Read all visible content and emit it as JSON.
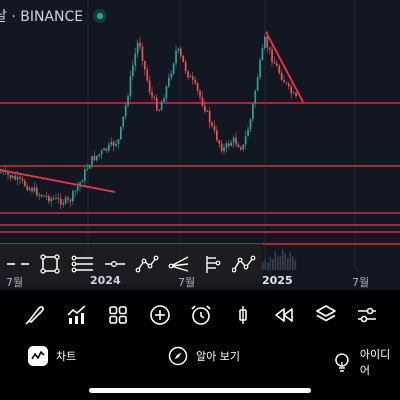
{
  "header": {
    "title": "날 · BINANCE",
    "status_color": "#22ab94"
  },
  "x_axis": {
    "labels": [
      "7월",
      "2024",
      "7월",
      "2025",
      "7월"
    ]
  },
  "colors": {
    "chart_bg": "#131722",
    "candle_up": "#26a69a",
    "candle_down": "#ef5350",
    "horizontal_line": "#f23645",
    "trendline": "#f23645"
  },
  "drawing_toolbar": {
    "tools": [
      "cursor-icon",
      "rectangle-icon",
      "parallel-channel-icon",
      "horizontal-ray-icon",
      "path-icon",
      "pitchfork-icon",
      "fib-extension-icon",
      "pattern-icon"
    ]
  },
  "main_toolbar": {
    "tools": [
      "brush-icon",
      "indicators-icon",
      "layouts-icon",
      "add-icon",
      "alert-icon",
      "candle-type-icon",
      "replay-icon",
      "layers-icon",
      "settings-icon"
    ]
  },
  "tabs": [
    {
      "label": "차트",
      "icon": "chart-icon"
    },
    {
      "label": "알아 보기",
      "icon": "compass-icon"
    },
    {
      "label": "아이디어",
      "icon": "lightbulb-icon"
    }
  ]
}
